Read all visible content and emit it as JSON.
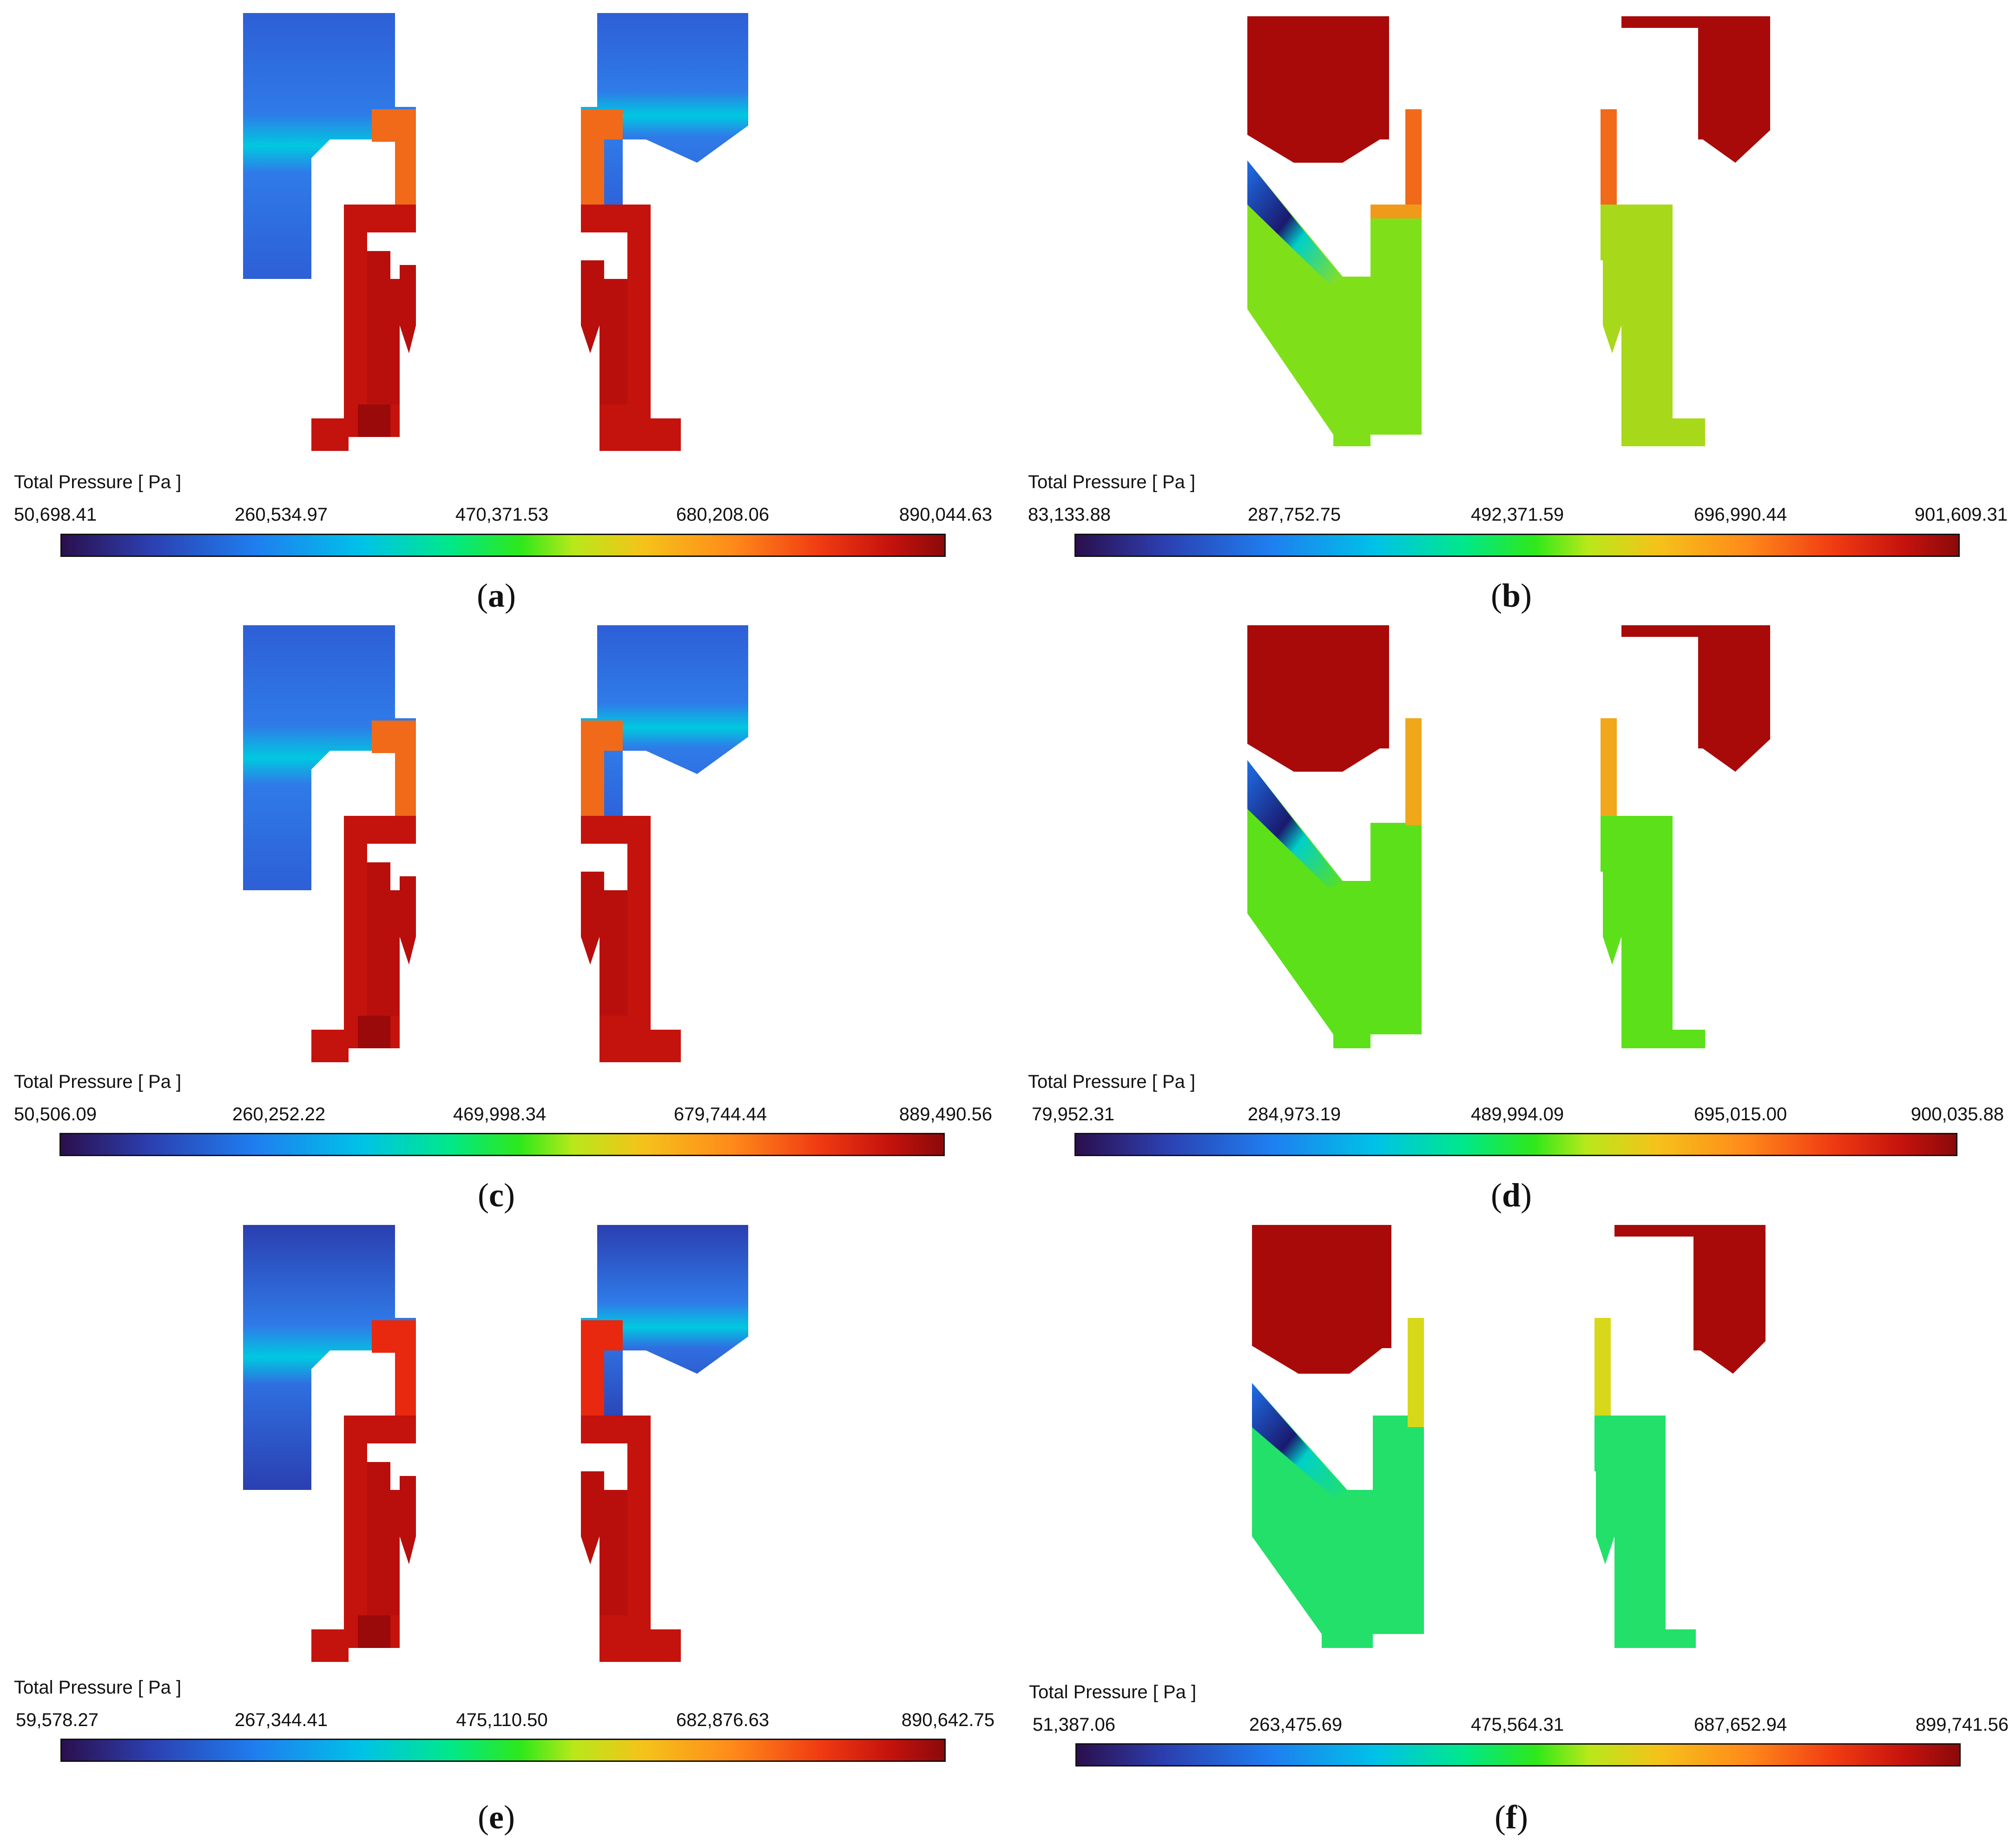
{
  "panels": [
    {
      "id": "a",
      "caption": "a",
      "legend_title": "Total Pressure [ Pa ]",
      "ticks": [
        "50,698.41",
        "260,534.97",
        "470,371.53",
        "680,208.06",
        "890,044.63"
      ],
      "scheme": "inlet-low"
    },
    {
      "id": "b",
      "caption": "b",
      "legend_title": "Total Pressure [ Pa ]",
      "ticks": [
        "83,133.88",
        "287,752.75",
        "492,371.59",
        "696,990.44",
        "901,609.31"
      ],
      "scheme": "inlet-high"
    },
    {
      "id": "c",
      "caption": "c",
      "legend_title": "Total Pressure [ Pa ]",
      "ticks": [
        "50,506.09",
        "260,252.22",
        "469,998.34",
        "679,744.44",
        "889,490.56"
      ],
      "scheme": "inlet-low"
    },
    {
      "id": "d",
      "caption": "d",
      "legend_title": "Total Pressure [ Pa ]",
      "ticks": [
        "79,952.31",
        "284,973.19",
        "489,994.09",
        "695,015.00",
        "900,035.88"
      ],
      "scheme": "inlet-high"
    },
    {
      "id": "e",
      "caption": "e",
      "legend_title": "Total Pressure [ Pa ]",
      "ticks": [
        "59,578.27",
        "267,344.41",
        "475,110.50",
        "682,876.63",
        "890,642.75"
      ],
      "scheme": "inlet-low"
    },
    {
      "id": "f",
      "caption": "f",
      "legend_title": "Total Pressure [ Pa ]",
      "ticks": [
        "51,387.06",
        "263,475.69",
        "475,564.31",
        "687,652.94",
        "899,741.56"
      ],
      "scheme": "inlet-high"
    }
  ],
  "colors": {
    "deep_blue": "#2b0f4d",
    "blue": "#2e5fd6",
    "light_blue": "#3a86f0",
    "cyan": "#00c8e0",
    "green": "#2ee81a",
    "lime": "#7fe01a",
    "yellow": "#f0d81a",
    "orange": "#ff8a1a",
    "red": "#e8280f",
    "dark_red": "#a80a0a"
  }
}
